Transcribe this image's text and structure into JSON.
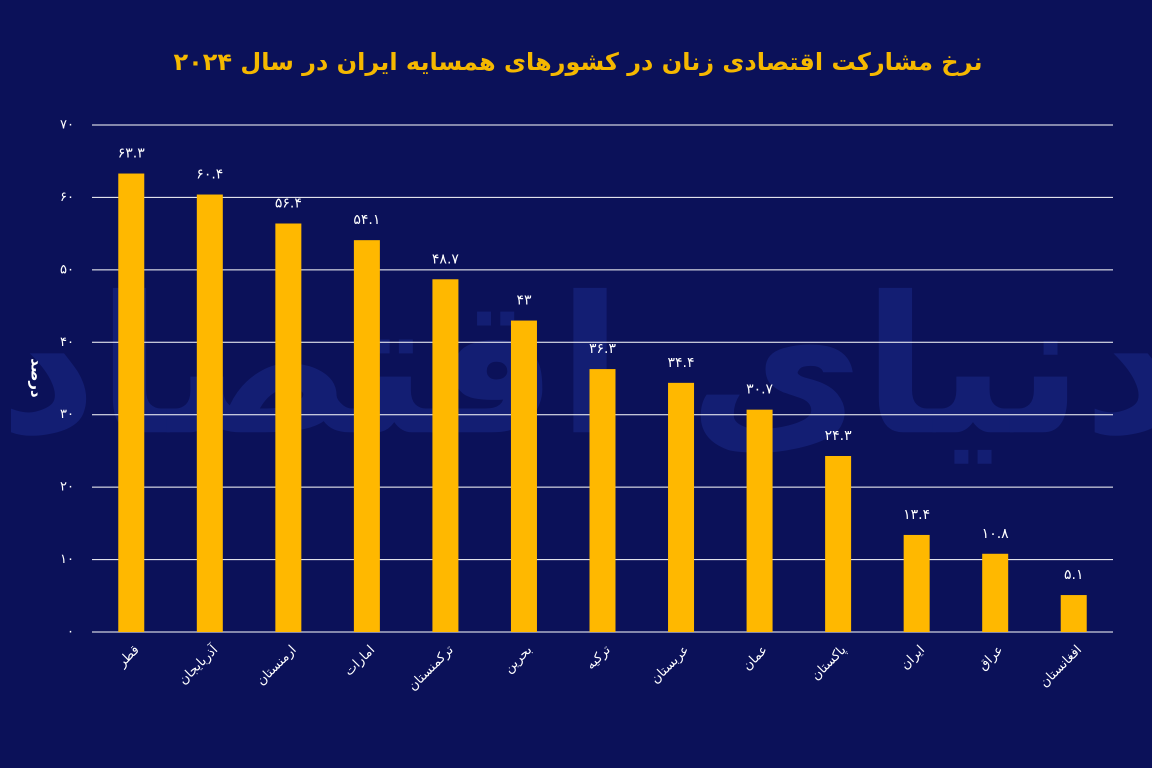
{
  "chart_data": {
    "type": "bar",
    "title": "نرخ مشارکت اقتصادی زنان در کشورهای همسایه ایران در سال ۲۰۲۴",
    "y_label": "درصد",
    "watermark": "دنیای اقتصاد",
    "categories": [
      "قطر",
      "آذربایجان",
      "ارمنستان",
      "امارات",
      "ترکمنستان",
      "بحرین",
      "ترکیه",
      "عربستان",
      "عمان",
      "پاکستان",
      "ایران",
      "عراق",
      "افغانستان"
    ],
    "values": [
      63.3,
      60.4,
      56.4,
      54.1,
      48.7,
      43,
      36.3,
      34.4,
      30.7,
      24.3,
      13.4,
      10.8,
      5.1
    ],
    "value_labels": [
      "۶۳.۳",
      "۶۰.۴",
      "۵۶.۴",
      "۵۴.۱",
      "۴۸.۷",
      "۴۳",
      "۳۶.۳",
      "۳۴.۴",
      "۳۰.۷",
      "۲۴.۳",
      "۱۳.۴",
      "۱۰.۸",
      "۵.۱"
    ],
    "color": "#ffb800",
    "ylim": [
      0,
      70
    ],
    "yticks": [
      {
        "value": 0,
        "label": "۰"
      },
      {
        "value": 10,
        "label": "۱۰"
      },
      {
        "value": 20,
        "label": "۲۰"
      },
      {
        "value": 30,
        "label": "۳۰"
      },
      {
        "value": 40,
        "label": "۴۰"
      },
      {
        "value": 50,
        "label": "۵۰"
      },
      {
        "value": 60,
        "label": "۶۰"
      },
      {
        "value": 70,
        "label": "۷۰"
      }
    ],
    "grid": true
  }
}
